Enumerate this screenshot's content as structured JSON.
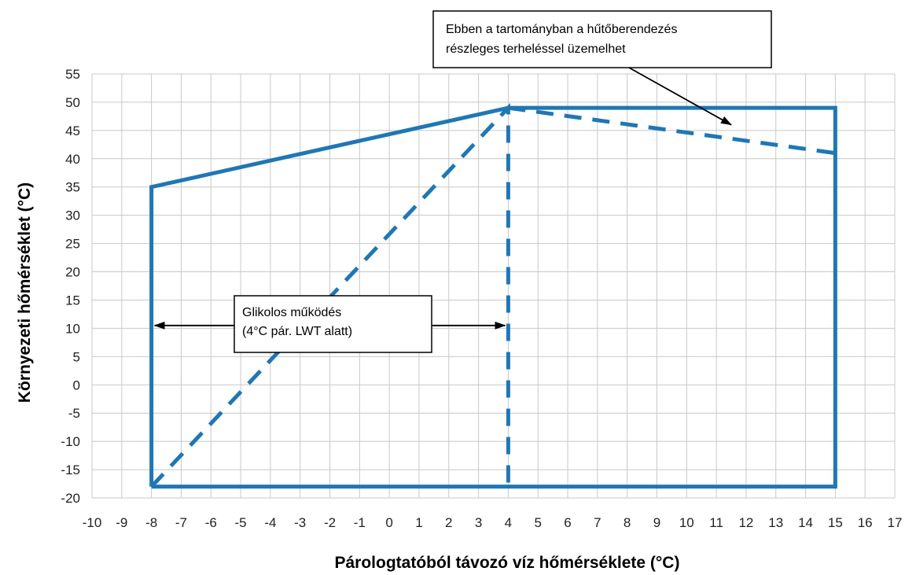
{
  "chart_data": {
    "type": "line",
    "title": "",
    "xlabel": "Párologtatóból távozó víz hőmérséklete (°C)",
    "ylabel": "Környezeti hőmérséklet (°C)",
    "xlim": [
      -10,
      17
    ],
    "ylim": [
      -20,
      55
    ],
    "xticks": [
      -10,
      -9,
      -8,
      -7,
      -6,
      -5,
      -4,
      -3,
      -2,
      -1,
      0,
      1,
      2,
      3,
      4,
      5,
      6,
      7,
      8,
      9,
      10,
      11,
      12,
      13,
      14,
      15,
      16,
      17
    ],
    "yticks": [
      55,
      50,
      45,
      40,
      35,
      30,
      25,
      20,
      15,
      10,
      5,
      0,
      -5,
      -10,
      -15,
      -20
    ],
    "grid": true,
    "line_color": "#1f77b4",
    "series": [
      {
        "style": "solid",
        "x": [
          -8,
          -8,
          4,
          15,
          15,
          -8
        ],
        "y": [
          -18,
          35,
          49,
          49,
          -18,
          -18
        ]
      },
      {
        "style": "dashed",
        "x": [
          -8,
          4,
          4
        ],
        "y": [
          -18,
          49,
          -18
        ]
      },
      {
        "style": "dashed",
        "x": [
          4,
          15
        ],
        "y": [
          49,
          41
        ]
      }
    ],
    "annotations": [
      {
        "lines": [
          "Ebben a tartományban a hűtőberendezés",
          "részleges terheléssel üzemelhet"
        ],
        "arrow_to": [
          11.5,
          46
        ]
      },
      {
        "lines": [
          "Glikolos működés",
          "(4°C pár. LWT alatt)"
        ],
        "arrows_to": [
          [
            -8,
            10.5
          ],
          [
            4,
            10.5
          ]
        ]
      }
    ]
  }
}
